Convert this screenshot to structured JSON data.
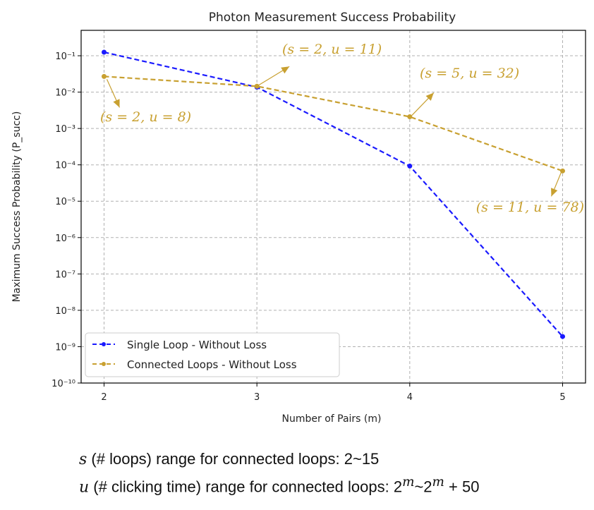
{
  "chart_data": {
    "type": "line",
    "title": "Photon Measurement Success Probability",
    "xlabel": "Number of Pairs (m)",
    "ylabel": "Maximum Success Probability (P_succ)",
    "x": [
      2,
      3,
      4,
      5
    ],
    "x_ticks": [
      "2",
      "3",
      "4",
      "5"
    ],
    "y_scale": "log",
    "ylim": [
      1e-10,
      0.5
    ],
    "y_ticks": [
      {
        "value": 0.1,
        "label": "10⁻¹"
      },
      {
        "value": 0.01,
        "label": "10⁻²"
      },
      {
        "value": 0.001,
        "label": "10⁻³"
      },
      {
        "value": 0.0001,
        "label": "10⁻⁴"
      },
      {
        "value": 1e-05,
        "label": "10⁻⁵"
      },
      {
        "value": 1e-06,
        "label": "10⁻⁶"
      },
      {
        "value": 1e-07,
        "label": "10⁻⁷"
      },
      {
        "value": 1e-08,
        "label": "10⁻⁸"
      },
      {
        "value": 1e-09,
        "label": "10⁻⁹"
      },
      {
        "value": 1e-10,
        "label": "10⁻¹⁰"
      }
    ],
    "grid": true,
    "legend_position": "lower-left",
    "series": [
      {
        "name": "Single Loop - Without Loss",
        "color": "#1a1aff",
        "marker": "circle",
        "line_style": "dashed",
        "values": [
          0.125,
          0.0137,
          9.25e-05,
          1.9e-09
        ]
      },
      {
        "name": "Connected Loops - Without Loss",
        "color": "#c8a030",
        "marker": "circle",
        "line_style": "dashed",
        "values": [
          0.027,
          0.0145,
          0.0021,
          6.8e-05
        ]
      }
    ],
    "annotations": [
      {
        "text": "(s = 2, u = 8)",
        "x": 2,
        "y": 0.027,
        "color": "#c8a030"
      },
      {
        "text": "(s = 2, u = 11)",
        "x": 3,
        "y": 0.0145,
        "color": "#c8a030"
      },
      {
        "text": "(s = 5, u = 32)",
        "x": 4,
        "y": 0.0021,
        "color": "#c8a030"
      },
      {
        "text": "(s = 11, u = 78)",
        "x": 5,
        "y": 6.8e-05,
        "color": "#c8a030"
      }
    ]
  },
  "footnotes": {
    "line1_var": "s",
    "line1_text": " (# loops) range for connected loops: 2~15",
    "line2_var": "u",
    "line2_text": " (# clicking time) range for connected loops: 2",
    "line2_sup1": "m",
    "line2_mid": "~2",
    "line2_sup2": "m",
    "line2_end": " + 50"
  }
}
